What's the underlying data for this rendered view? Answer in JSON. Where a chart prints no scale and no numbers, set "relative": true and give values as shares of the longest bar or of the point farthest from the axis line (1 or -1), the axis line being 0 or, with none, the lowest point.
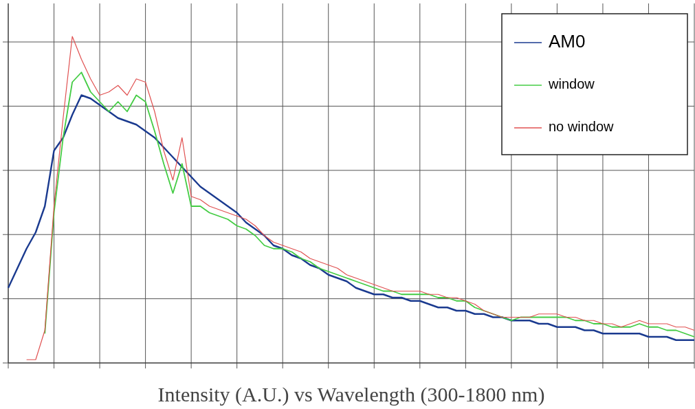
{
  "chart_data": {
    "type": "line",
    "xlabel": "Intensity (A.U.) vs Wavelength (300-1800 nm)",
    "relative": true,
    "grid": true,
    "legend": "top right",
    "categories": [
      null,
      null,
      null,
      null,
      null,
      null,
      null,
      null,
      null,
      null,
      null,
      null,
      null,
      null,
      null,
      null,
      null,
      null,
      null,
      null,
      null,
      null,
      null,
      null,
      null,
      null,
      null,
      null,
      null,
      null,
      null,
      null,
      null,
      null,
      null,
      null,
      null,
      null,
      null,
      null,
      null,
      null,
      null,
      null,
      null,
      null,
      null,
      null,
      null,
      null,
      null,
      null,
      null,
      null,
      null,
      null,
      null,
      null,
      null,
      null,
      null,
      null,
      null,
      null,
      null,
      null,
      null,
      null,
      null,
      null,
      null,
      null,
      null,
      null,
      null,
      null
    ],
    "series": [
      {
        "name": "AM0",
        "color": "#1a3a8f",
        "values": [
          0.23,
          0.29,
          0.35,
          0.4,
          0.48,
          0.65,
          0.69,
          0.76,
          0.82,
          0.81,
          0.79,
          0.77,
          0.75,
          0.74,
          0.73,
          0.71,
          0.69,
          0.66,
          0.63,
          0.6,
          0.57,
          0.54,
          0.52,
          0.5,
          0.48,
          0.46,
          0.43,
          0.41,
          0.39,
          0.36,
          0.35,
          0.33,
          0.32,
          0.3,
          0.29,
          0.27,
          0.26,
          0.25,
          0.23,
          0.22,
          0.21,
          0.21,
          0.2,
          0.2,
          0.19,
          0.19,
          0.18,
          0.17,
          0.17,
          0.16,
          0.16,
          0.15,
          0.15,
          0.14,
          0.14,
          0.13,
          0.13,
          0.13,
          0.12,
          0.12,
          0.11,
          0.11,
          0.11,
          0.1,
          0.1,
          0.09,
          0.09,
          0.09,
          0.09,
          0.09,
          0.08,
          0.08,
          0.08,
          0.07,
          0.07,
          0.07
        ]
      },
      {
        "name": "window",
        "color": "#44cc44",
        "values": [
          null,
          null,
          null,
          null,
          0.09,
          0.46,
          0.69,
          0.86,
          0.89,
          0.83,
          0.8,
          0.77,
          0.8,
          0.77,
          0.82,
          0.8,
          0.71,
          0.61,
          0.52,
          0.61,
          0.48,
          0.48,
          0.46,
          0.45,
          0.44,
          0.42,
          0.41,
          0.39,
          0.36,
          0.35,
          0.35,
          0.34,
          0.32,
          0.31,
          0.29,
          0.28,
          0.27,
          0.26,
          0.25,
          0.24,
          0.23,
          0.22,
          0.22,
          0.21,
          0.21,
          0.21,
          0.21,
          0.2,
          0.2,
          0.19,
          0.19,
          0.17,
          0.16,
          0.15,
          0.14,
          0.13,
          0.14,
          0.14,
          0.14,
          0.14,
          0.14,
          0.14,
          0.13,
          0.13,
          0.12,
          0.12,
          0.11,
          0.11,
          0.11,
          0.12,
          0.11,
          0.11,
          0.1,
          0.1,
          0.09,
          0.08
        ]
      },
      {
        "name": "no window",
        "color": "#e05050",
        "values": [
          null,
          null,
          0.01,
          0.01,
          0.1,
          0.48,
          0.75,
          1.0,
          0.93,
          0.87,
          0.82,
          0.83,
          0.85,
          0.82,
          0.87,
          0.86,
          0.77,
          0.65,
          0.56,
          0.69,
          0.51,
          0.5,
          0.48,
          0.47,
          0.46,
          0.45,
          0.44,
          0.42,
          0.39,
          0.37,
          0.36,
          0.35,
          0.34,
          0.32,
          0.31,
          0.3,
          0.29,
          0.27,
          0.26,
          0.25,
          0.24,
          0.23,
          0.22,
          0.22,
          0.22,
          0.22,
          0.21,
          0.21,
          0.2,
          0.2,
          0.19,
          0.18,
          0.16,
          0.15,
          0.14,
          0.14,
          0.14,
          0.14,
          0.15,
          0.15,
          0.15,
          0.14,
          0.14,
          0.13,
          0.13,
          0.12,
          0.12,
          0.11,
          0.12,
          0.13,
          0.12,
          0.12,
          0.12,
          0.11,
          0.11,
          0.1
        ]
      }
    ]
  }
}
